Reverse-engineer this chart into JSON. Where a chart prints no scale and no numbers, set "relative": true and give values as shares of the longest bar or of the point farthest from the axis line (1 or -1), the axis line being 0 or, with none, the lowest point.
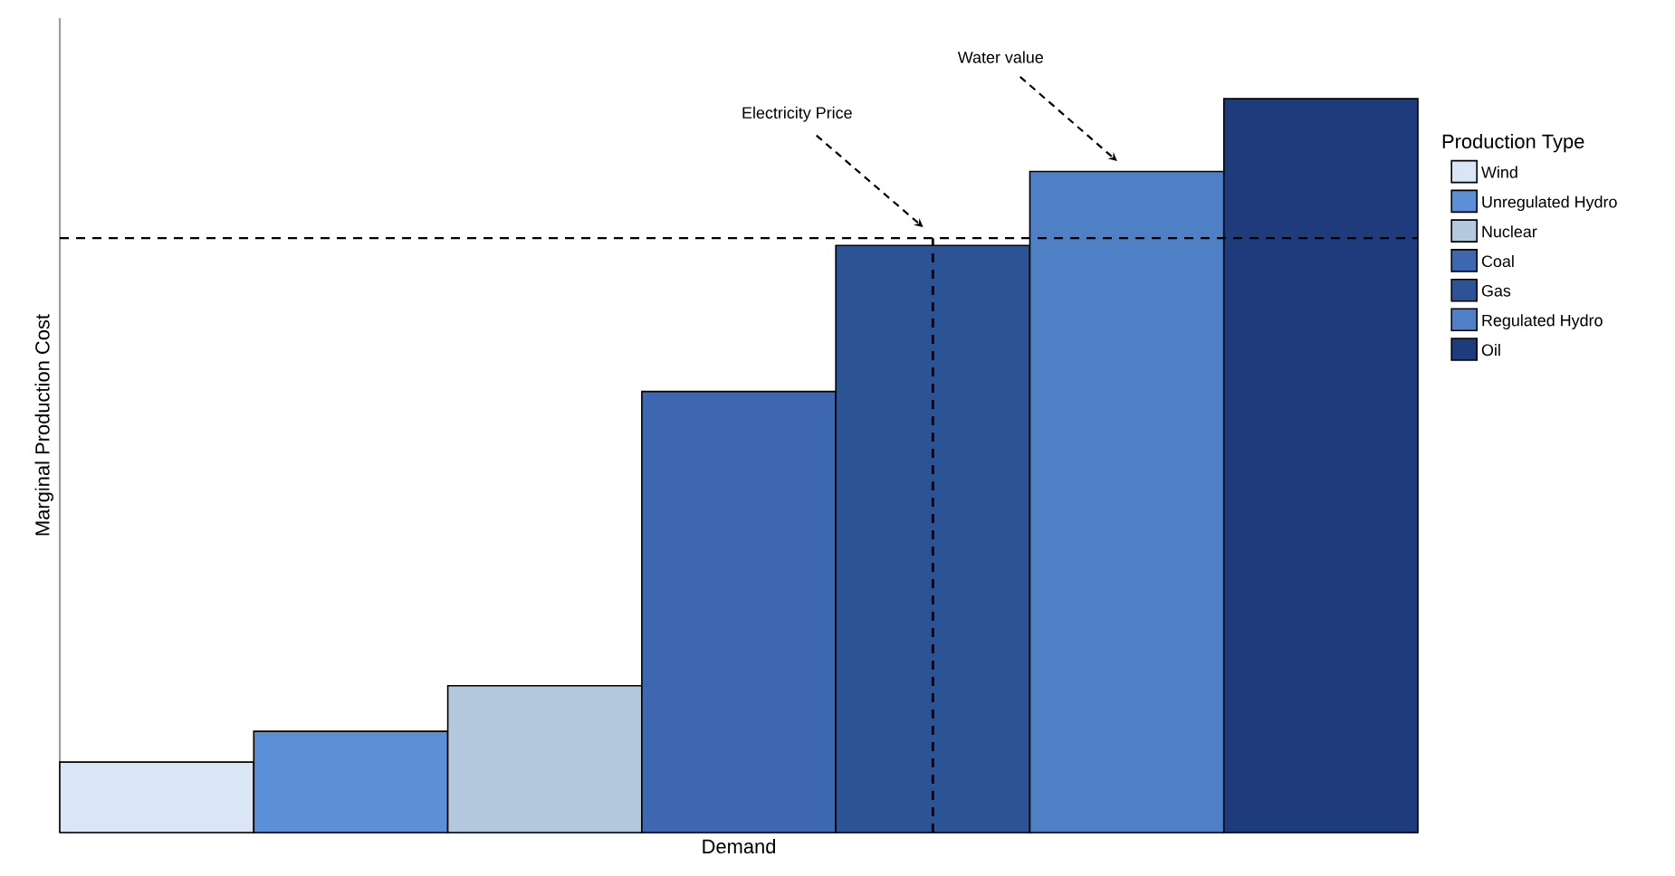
{
  "chart_data": {
    "type": "bar",
    "relative": true,
    "xlabel": "Demand",
    "ylabel": "Marginal Production Cost",
    "legend_title": "Production Type",
    "legend": "right",
    "stacked": true,
    "categories": [
      null,
      null,
      null,
      null,
      null,
      null,
      null
    ],
    "series": [
      {
        "name": "Wind",
        "color": "#dae6f5",
        "values": [
          0.096,
          null,
          null,
          null,
          null,
          null,
          null
        ]
      },
      {
        "name": "Unregulated Hydro",
        "color": "#5b8fd6",
        "values": [
          null,
          0.138,
          null,
          null,
          null,
          null,
          null
        ]
      },
      {
        "name": "Nuclear",
        "color": "#b4c8de",
        "values": [
          null,
          null,
          0.2,
          null,
          null,
          null,
          null
        ]
      },
      {
        "name": "Coal",
        "color": "#3d67b0",
        "values": [
          null,
          null,
          null,
          0.601,
          null,
          null,
          null
        ]
      },
      {
        "name": "Gas",
        "color": "#2c5394",
        "values": [
          null,
          null,
          null,
          null,
          0.8,
          null,
          null
        ]
      },
      {
        "name": "Regulated Hydro",
        "color": "#4f7fc4",
        "values": [
          null,
          null,
          null,
          null,
          null,
          0.901,
          null
        ]
      },
      {
        "name": "Oil",
        "color": "#1e3c7c",
        "values": [
          null,
          null,
          null,
          null,
          null,
          null,
          1
        ]
      }
    ],
    "ref_lines": [
      {
        "axis": "y",
        "value": 0.81,
        "line_style": "dashed"
      }
    ],
    "annotations": [
      "Electricity Price",
      "Water value"
    ]
  }
}
